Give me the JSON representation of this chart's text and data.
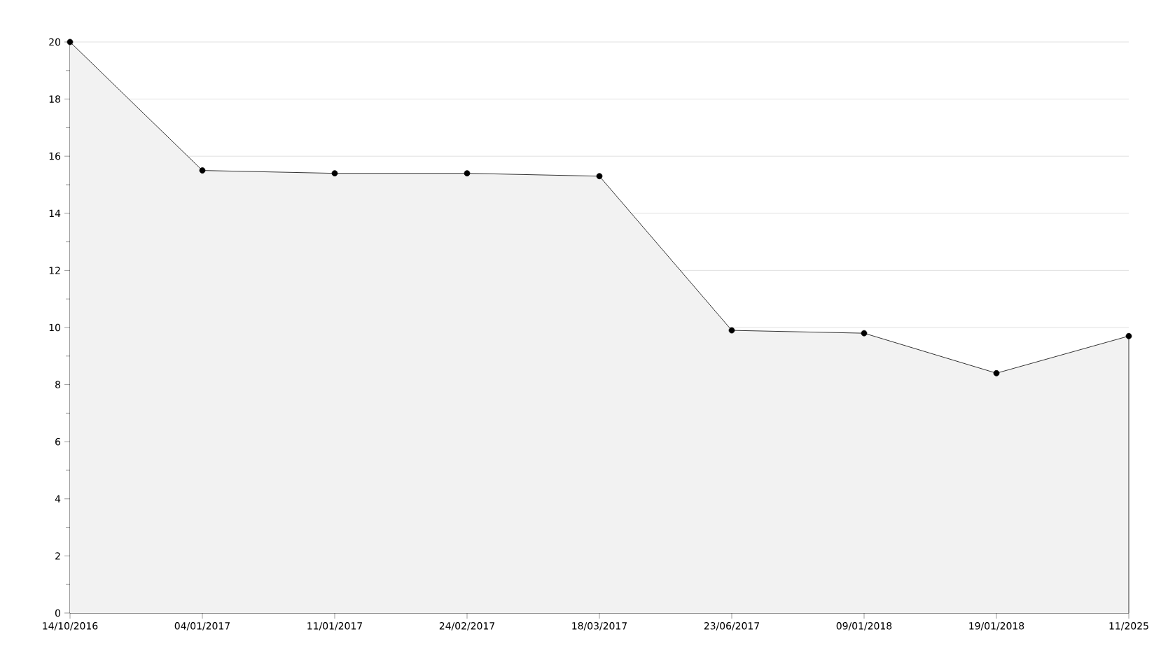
{
  "chart_data": {
    "type": "area",
    "categories": [
      "14/10/2016",
      "04/01/2017",
      "11/01/2017",
      "24/02/2017",
      "18/03/2017",
      "23/06/2017",
      "09/01/2018",
      "19/01/2018",
      "11/2025"
    ],
    "series": [
      {
        "color": "#000000",
        "values": [
          20,
          15.5,
          15.4,
          15.4,
          15.3,
          9.9,
          9.8,
          8.4,
          9.7
        ]
      }
    ],
    "ylim": [
      0,
      20
    ],
    "yticks": [
      0,
      2,
      4,
      6,
      8,
      10,
      12,
      14,
      16,
      18,
      20
    ],
    "grid": "y",
    "marker": "circle",
    "line_style": "solid"
  }
}
